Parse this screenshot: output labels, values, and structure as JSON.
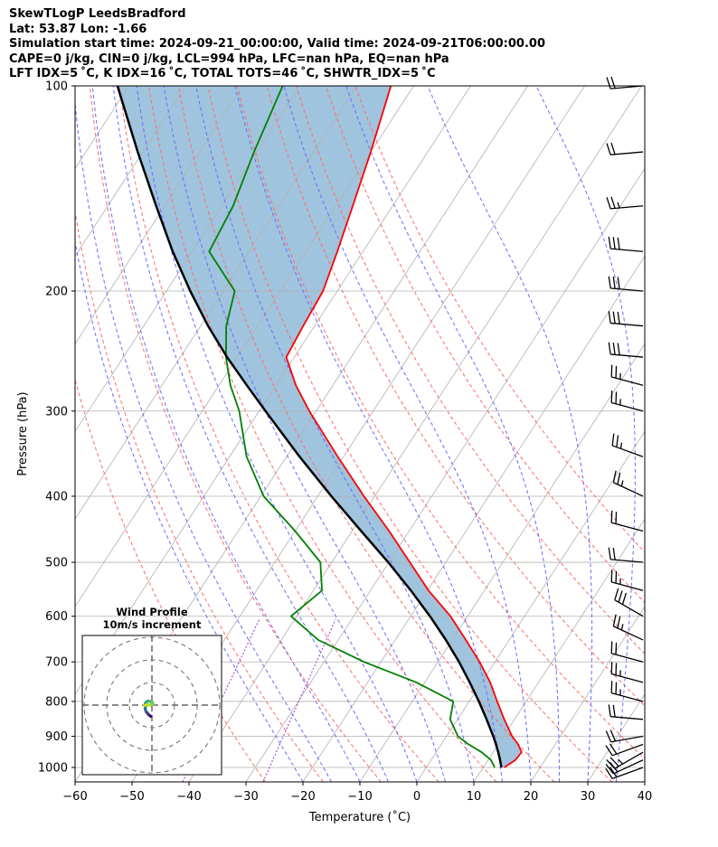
{
  "header": {
    "line1": "SkewTLogP LeedsBradford",
    "line2": "Lat: 53.87   Lon: -1.66",
    "line3": "Simulation start time: 2024-09-21_00:00:00, Valid time: 2024-09-21T06:00:00.00",
    "line4": "CAPE=0 j/kg, CIN=0 j/kg, LCL=994 hPa, LFC=nan hPa, EQ=nan hPa",
    "line5": "LFT IDX=5 ˚C, K IDX=16 ˚C, TOTAL TOTS=46 ˚C, SHWTR_IDX=5 ˚C"
  },
  "hodograph": {
    "title": "Wind Profile",
    "subtitle": "10m/s increment"
  },
  "colors": {
    "temperature": "#ff0000",
    "dewpoint": "#008000",
    "parcel": "#000000",
    "fill": "#a0c4de",
    "dry_adiabat": "#ff6a6a",
    "moist_adiabat": "#6a6aff",
    "mixing_ratio": "#9933cc",
    "isotherm": "#b0b0b0",
    "grid": "#b0b0b0"
  },
  "chart_data": {
    "type": "line",
    "subtype": "skew-t-log-p",
    "xlabel": "Temperature (˚C)",
    "ylabel": "Pressure (hPa)",
    "xlim": [
      -60,
      40
    ],
    "ylim": [
      1050,
      100
    ],
    "yscale": "log",
    "xticks": [
      -60,
      -50,
      -40,
      -30,
      -20,
      -10,
      0,
      10,
      20,
      30,
      40
    ],
    "yticks": [
      100,
      200,
      300,
      400,
      500,
      600,
      700,
      800,
      900,
      1000
    ],
    "grid": true,
    "series": [
      {
        "key": "temperature",
        "pressure": [
          1000,
          975,
          950,
          925,
          900,
          850,
          800,
          750,
          700,
          650,
          600,
          550,
          500,
          450,
          400,
          350,
          300,
          275,
          250,
          225,
          200,
          175,
          150,
          125,
          100
        ],
        "values": [
          13.7,
          14.8,
          15.0,
          13.5,
          11.5,
          8.2,
          4.9,
          1.5,
          -2.7,
          -7.6,
          -13.0,
          -19.8,
          -26.3,
          -33.5,
          -41.9,
          -51.0,
          -61.2,
          -66.5,
          -71.4,
          -72.0,
          -72.5,
          -74.5,
          -77.0,
          -80.0,
          -84.0
        ]
      },
      {
        "key": "dewpoint",
        "pressure": [
          1000,
          975,
          950,
          925,
          900,
          850,
          800,
          750,
          700,
          650,
          600,
          550,
          500,
          450,
          400,
          350,
          300,
          275,
          250,
          225,
          200,
          175,
          150,
          125,
          100
        ],
        "values": [
          12.0,
          10.5,
          8.0,
          4.8,
          2.0,
          -1.3,
          -2.8,
          -11.5,
          -23.0,
          -33.5,
          -41.0,
          -38.5,
          -42.0,
          -50.0,
          -59.5,
          -67.0,
          -73.5,
          -78.0,
          -82.0,
          -85.5,
          -88.0,
          -97.0,
          -98.0,
          -100.5,
          -103.0
        ]
      },
      {
        "key": "parcel",
        "pressure": [
          1000,
          975,
          950,
          925,
          900,
          850,
          800,
          750,
          700,
          650,
          600,
          550,
          500,
          450,
          400,
          350,
          300,
          275,
          250,
          225,
          200,
          175,
          150,
          125,
          100
        ],
        "values": [
          13.2,
          12.1,
          10.9,
          9.6,
          8.2,
          5.1,
          1.7,
          -2.1,
          -6.3,
          -11.1,
          -16.6,
          -22.9,
          -30.1,
          -38.4,
          -47.6,
          -57.7,
          -68.9,
          -75.1,
          -81.8,
          -88.7,
          -95.8,
          -103.4,
          -111.5,
          -120.9,
          -132.0
        ]
      }
    ],
    "wind_barbs": {
      "pressure": [
        1000,
        975,
        950,
        925,
        900,
        850,
        800,
        750,
        700,
        650,
        600,
        550,
        500,
        450,
        400,
        350,
        300,
        275,
        250,
        225,
        200,
        175,
        150,
        125,
        100
      ],
      "direction_deg": [
        250,
        245,
        240,
        250,
        260,
        275,
        285,
        285,
        285,
        295,
        300,
        285,
        275,
        285,
        295,
        290,
        285,
        285,
        275,
        275,
        275,
        275,
        265,
        265,
        265
      ],
      "speed_kt": [
        18,
        22,
        25,
        22,
        20,
        20,
        25,
        25,
        20,
        25,
        30,
        25,
        20,
        20,
        25,
        25,
        25,
        25,
        30,
        30,
        30,
        30,
        25,
        20,
        20
      ]
    },
    "hodograph": {
      "rings_ms": [
        10,
        20,
        30
      ],
      "points_ms": [
        [
          -0.5,
          -5.0
        ],
        [
          -1.0,
          -4.6
        ],
        [
          -1.5,
          -4.2
        ],
        [
          -2.0,
          -3.6
        ],
        [
          -2.5,
          -3.0
        ],
        [
          -2.8,
          -2.3
        ],
        [
          -3.0,
          -1.5
        ],
        [
          -2.8,
          -0.6
        ],
        [
          -3.0,
          0.4
        ],
        [
          -2.6,
          1.3
        ],
        [
          -1.8,
          1.8
        ],
        [
          -0.6,
          1.6
        ],
        [
          0.3,
          1.1
        ],
        [
          0.4,
          0.4
        ],
        [
          -0.5,
          0.0
        ],
        [
          -1.4,
          0.1
        ],
        [
          -2.4,
          0.1
        ],
        [
          -3.4,
          -0.2
        ]
      ]
    },
    "isotherm_step": 10,
    "dry_adiabats_theta_c": [
      -30,
      -20,
      -10,
      0,
      10,
      20,
      30,
      40,
      50,
      60,
      70,
      80
    ],
    "moist_adiabats_c": [
      -20,
      -15,
      -10,
      -5,
      0,
      5,
      10,
      15,
      20,
      25,
      30,
      35
    ],
    "mixing_ratio_gkg": [
      0.1,
      0.4
    ]
  }
}
